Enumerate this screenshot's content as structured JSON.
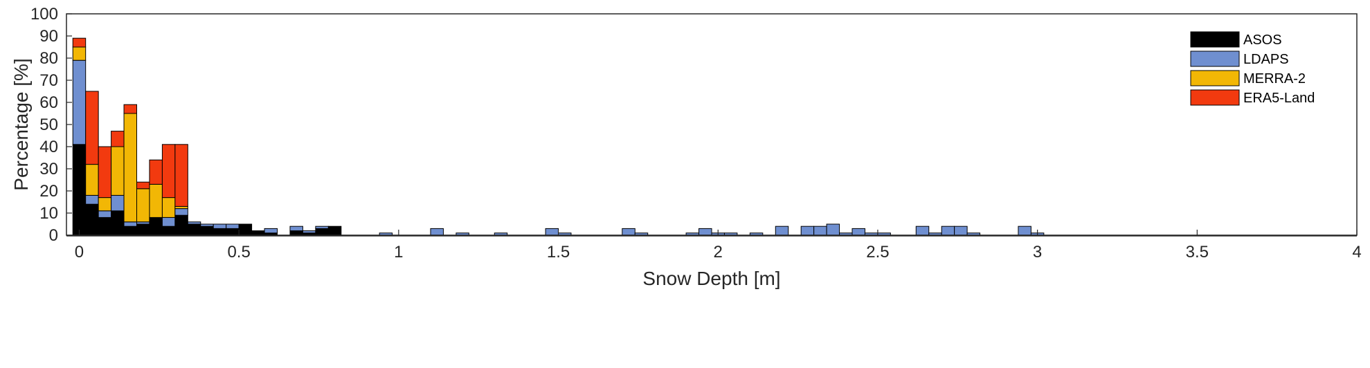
{
  "chart_data": {
    "type": "bar",
    "stacked": true,
    "xlabel": "Snow Depth [m]",
    "ylabel": "Percentage [%]",
    "xlim": [
      -0.04,
      4
    ],
    "ylim": [
      0,
      100
    ],
    "x_ticks": [
      0,
      0.5,
      1,
      1.5,
      2,
      2.5,
      3,
      3.5,
      4
    ],
    "y_ticks": [
      0,
      10,
      20,
      30,
      40,
      50,
      60,
      70,
      80,
      90,
      100
    ],
    "bin_width": 0.04,
    "grid": false,
    "legend_position": "top-right",
    "x": [
      0,
      0.04,
      0.08,
      0.12,
      0.16,
      0.2,
      0.24,
      0.28,
      0.32,
      0.36,
      0.4,
      0.44,
      0.48,
      0.52,
      0.56,
      0.6,
      0.64,
      0.68,
      0.72,
      0.76,
      0.8,
      0.84,
      0.88,
      0.92,
      0.96,
      1.0,
      1.04,
      1.08,
      1.12,
      1.16,
      1.2,
      1.24,
      1.28,
      1.32,
      1.36,
      1.4,
      1.44,
      1.48,
      1.52,
      1.56,
      1.6,
      1.64,
      1.68,
      1.72,
      1.76,
      1.8,
      1.84,
      1.88,
      1.92,
      1.96,
      2.0,
      2.04,
      2.08,
      2.12,
      2.16,
      2.2,
      2.24,
      2.28,
      2.32,
      2.36,
      2.4,
      2.44,
      2.48,
      2.52,
      2.56,
      2.6,
      2.64,
      2.68,
      2.72,
      2.76,
      2.8,
      2.84,
      2.88,
      2.92,
      2.96,
      3.0
    ],
    "series": [
      {
        "name": "ASOS",
        "color": "#000000",
        "values": [
          41,
          14,
          8,
          11,
          4,
          5,
          8,
          4,
          9,
          5,
          4,
          3,
          3,
          5,
          2,
          1,
          0,
          2,
          1,
          3,
          4,
          0,
          0,
          0,
          0,
          0,
          0,
          0,
          0,
          0,
          0,
          0,
          0,
          0,
          0,
          0,
          0,
          0,
          0,
          0,
          0,
          0,
          0,
          0,
          0,
          0,
          0,
          0,
          0,
          0,
          0,
          0,
          0,
          0,
          0,
          0,
          0,
          0,
          0,
          0,
          0,
          0,
          0,
          0,
          0,
          0,
          0,
          0,
          0,
          0,
          0,
          0,
          0,
          0,
          0,
          0
        ]
      },
      {
        "name": "LDAPS",
        "color": "#6f8fd0",
        "values": [
          38,
          4,
          3,
          7,
          2,
          1,
          0,
          4,
          3,
          1,
          1,
          2,
          2,
          0,
          0,
          2,
          0,
          2,
          1,
          1,
          0,
          0,
          0,
          0,
          1,
          0,
          0,
          0,
          3,
          0,
          1,
          0,
          0,
          1,
          0,
          0,
          0,
          3,
          1,
          0,
          0,
          0,
          0,
          3,
          1,
          0,
          0,
          0,
          1,
          3,
          1,
          1,
          0,
          1,
          0,
          4,
          0,
          4,
          4,
          5,
          1,
          3,
          1,
          1,
          0,
          0,
          4,
          1,
          4,
          4,
          1,
          0,
          0,
          0,
          4,
          1
        ]
      },
      {
        "name": "MERRA-2",
        "color": "#f2b705",
        "values": [
          6,
          14,
          6,
          22,
          49,
          15,
          15,
          9,
          1,
          0,
          0,
          0,
          0,
          0,
          0,
          0,
          0,
          0,
          0,
          0,
          0,
          0,
          0,
          0,
          0,
          0,
          0,
          0,
          0,
          0,
          0,
          0,
          0,
          0,
          0,
          0,
          0,
          0,
          0,
          0,
          0,
          0,
          0,
          0,
          0,
          0,
          0,
          0,
          0,
          0,
          0,
          0,
          0,
          0,
          0,
          0,
          0,
          0,
          0,
          0,
          0,
          0,
          0,
          0,
          0,
          0,
          0,
          0,
          0,
          0,
          0,
          0,
          0,
          0,
          0,
          0
        ]
      },
      {
        "name": "ERA5-Land",
        "color": "#f23a0f",
        "values": [
          4,
          33,
          23,
          7,
          4,
          3,
          11,
          24,
          28,
          0,
          0,
          0,
          0,
          0,
          0,
          0,
          0,
          0,
          0,
          0,
          0,
          0,
          0,
          0,
          0,
          0,
          0,
          0,
          0,
          0,
          0,
          0,
          0,
          0,
          0,
          0,
          0,
          0,
          0,
          0,
          0,
          0,
          0,
          0,
          0,
          0,
          0,
          0,
          0,
          0,
          0,
          0,
          0,
          0,
          0,
          0,
          0,
          0,
          0,
          0,
          0,
          0,
          0,
          0,
          0,
          0,
          0,
          0,
          0,
          0,
          0,
          0,
          0,
          0,
          0,
          0
        ]
      }
    ]
  }
}
